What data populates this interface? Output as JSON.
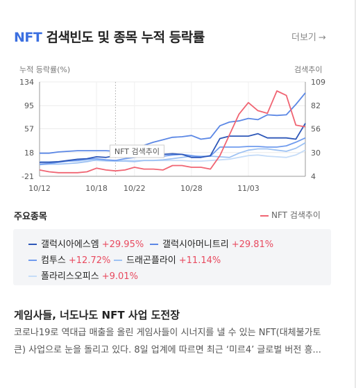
{
  "header": {
    "title_accent": "NFT",
    "title_rest": "검색빈도 및 종목 누적 등락률",
    "more_label": "더보기",
    "more_arrow": "→"
  },
  "chart_data": {
    "type": "line",
    "left_axis_label": "누적 등락률(%)",
    "right_axis_label": "검색추이",
    "left_ticks": [
      134,
      95,
      57,
      18,
      -21
    ],
    "right_ticks": [
      109,
      82,
      56,
      30,
      4
    ],
    "ylim_left": [
      -21,
      134
    ],
    "ylim_right": [
      4,
      109
    ],
    "x_ticks": [
      "10/12",
      "10/18",
      "10/22",
      "10/28",
      "11/03"
    ],
    "x_count": 29,
    "x_tick_index": [
      0,
      6,
      10,
      16,
      22
    ],
    "hover_index": 8,
    "hover_label": "NFT 검색추이",
    "series": [
      {
        "name": "NFT 검색추이",
        "axis": "right",
        "color": "#f06472",
        "values": [
          11,
          9,
          8,
          8,
          8,
          9,
          13,
          11,
          10,
          11,
          14,
          12,
          12,
          11,
          16,
          16,
          14,
          14,
          12,
          27,
          50,
          73,
          86,
          77,
          74,
          99,
          94,
          61,
          59
        ]
      },
      {
        "name": "갤럭시아에스엠",
        "axis": "left",
        "color": "#2d57b8",
        "values": [
          2,
          2,
          3,
          5,
          7,
          8,
          11,
          10,
          13,
          14,
          15,
          16,
          15,
          15,
          16,
          15,
          10,
          10,
          13,
          41,
          45,
          45,
          45,
          49,
          42,
          42,
          42,
          40,
          66
        ]
      },
      {
        "name": "갤럭시아머니트리",
        "axis": "left",
        "color": "#5b87e5",
        "values": [
          17,
          17,
          19,
          20,
          21,
          21,
          21,
          21,
          20,
          21,
          24,
          30,
          35,
          39,
          43,
          44,
          46,
          40,
          42,
          62,
          68,
          70,
          74,
          72,
          80,
          79,
          80,
          97,
          116
        ]
      },
      {
        "name": "컴투스",
        "axis": "left",
        "color": "#6f9bee",
        "values": [
          -1,
          0,
          2,
          4,
          5,
          7,
          8,
          6,
          5,
          8,
          10,
          11,
          12,
          12,
          14,
          15,
          13,
          11,
          12,
          27,
          27,
          27,
          28,
          28,
          27,
          27,
          29,
          35,
          42
        ]
      },
      {
        "name": "드래곤플라이",
        "axis": "left",
        "color": "#9ec2f3",
        "values": [
          -2,
          -1,
          -1,
          0,
          1,
          3,
          6,
          5,
          4,
          4,
          3,
          5,
          5,
          6,
          8,
          10,
          12,
          12,
          12,
          11,
          10,
          17,
          22,
          24,
          24,
          22,
          20,
          25,
          34
        ]
      },
      {
        "name": "폴라리스오피스",
        "axis": "left",
        "color": "#c5dcf8",
        "values": [
          3,
          3,
          3,
          4,
          4,
          5,
          5,
          4,
          4,
          5,
          5,
          5,
          5,
          5,
          5,
          5,
          4,
          4,
          5,
          6,
          7,
          10,
          13,
          14,
          12,
          11,
          10,
          14,
          22
        ]
      }
    ]
  },
  "section": {
    "label": "주요종목",
    "nft_legend": "NFT 검색추이"
  },
  "stocks": [
    {
      "name": "갤럭시아에스엠",
      "change": "+29.95%",
      "color": "#2d57b8"
    },
    {
      "name": "갤럭시아머니트리",
      "change": "+29.81%",
      "color": "#5b87e5"
    },
    {
      "name": "컴투스",
      "change": "+12.72%",
      "color": "#6f9bee"
    },
    {
      "name": "드래곤플라이",
      "change": "+11.14%",
      "color": "#9ec2f3"
    },
    {
      "name": "폴라리스오피스",
      "change": "+9.01%",
      "color": "#c5dcf8"
    }
  ],
  "news": {
    "title": "게임사들, 너도나도 NFT 사업 도전장",
    "body": "코로나19로 역대급 매출을 올린 게임사들이 시너지를 낼 수 있는 NFT(대체불가토큰) 사업으로 눈을 돌리고 있다. 8일 업계에 따르면 최근 ‘미르4’ 글로벌 버전 흥..."
  }
}
